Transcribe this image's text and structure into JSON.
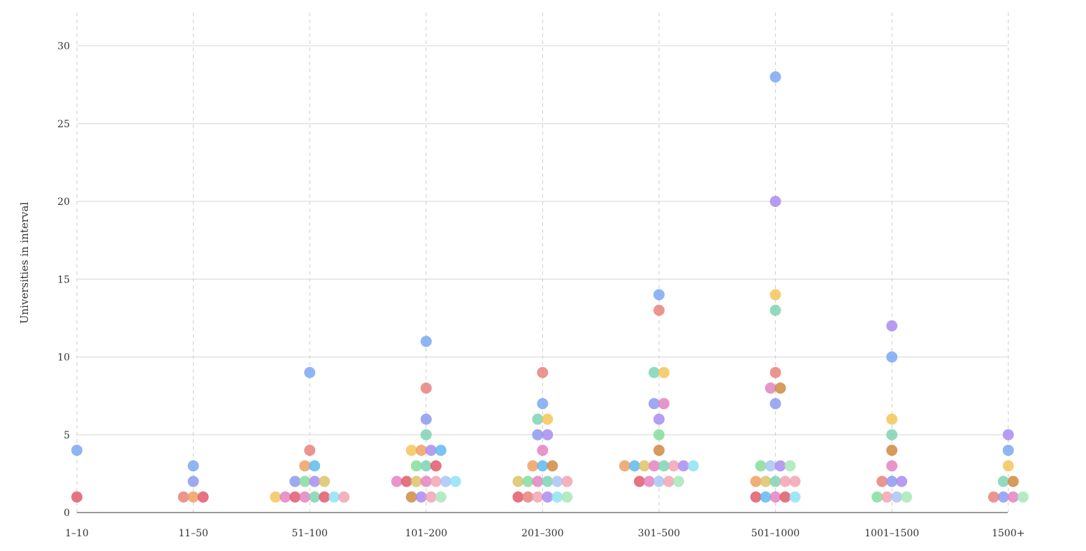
{
  "chart_data": {
    "type": "scatter",
    "title": "",
    "xlabel": "",
    "ylabel": "Universities in interval",
    "ylim": [
      0,
      31
    ],
    "yticks": [
      0,
      5,
      10,
      15,
      20,
      25,
      30
    ],
    "grid": true,
    "categories": [
      "1–10",
      "11–50",
      "51–100",
      "101–200",
      "201–300",
      "301–500",
      "501–1000",
      "1001–1500",
      "1500+"
    ],
    "palette": [
      "#E15A6B",
      "#E8827C",
      "#F0A060",
      "#F3C65A",
      "#DCC36A",
      "#F2A3B3",
      "#E383C2",
      "#A98CF0",
      "#8C9AEF",
      "#7BA8F3",
      "#A9C6F5",
      "#5FB9F0",
      "#8FE3F5",
      "#7FD4B4",
      "#85DD9C",
      "#A8E8B8",
      "#D08A40"
    ],
    "points": [
      {
        "cat": 0,
        "y": 1,
        "c": 0
      },
      {
        "cat": 0,
        "y": 4,
        "c": 9
      },
      {
        "cat": 1,
        "y": 1,
        "c": 1
      },
      {
        "cat": 1,
        "y": 1,
        "c": 2
      },
      {
        "cat": 1,
        "y": 1,
        "c": 0
      },
      {
        "cat": 1,
        "y": 2,
        "c": 8
      },
      {
        "cat": 1,
        "y": 3,
        "c": 9
      },
      {
        "cat": 2,
        "y": 1,
        "c": 3
      },
      {
        "cat": 2,
        "y": 1,
        "c": 6
      },
      {
        "cat": 2,
        "y": 1,
        "c": 0
      },
      {
        "cat": 2,
        "y": 1,
        "c": 6
      },
      {
        "cat": 2,
        "y": 1,
        "c": 13
      },
      {
        "cat": 2,
        "y": 1,
        "c": 0
      },
      {
        "cat": 2,
        "y": 1,
        "c": 12
      },
      {
        "cat": 2,
        "y": 1,
        "c": 5
      },
      {
        "cat": 2,
        "y": 2,
        "c": 8
      },
      {
        "cat": 2,
        "y": 2,
        "c": 14
      },
      {
        "cat": 2,
        "y": 2,
        "c": 7
      },
      {
        "cat": 2,
        "y": 2,
        "c": 4
      },
      {
        "cat": 2,
        "y": 3,
        "c": 2
      },
      {
        "cat": 2,
        "y": 3,
        "c": 11
      },
      {
        "cat": 2,
        "y": 4,
        "c": 1
      },
      {
        "cat": 2,
        "y": 9,
        "c": 9
      },
      {
        "cat": 3,
        "y": 1,
        "c": 16
      },
      {
        "cat": 3,
        "y": 1,
        "c": 7
      },
      {
        "cat": 3,
        "y": 1,
        "c": 5
      },
      {
        "cat": 3,
        "y": 1,
        "c": 15
      },
      {
        "cat": 3,
        "y": 2,
        "c": 6
      },
      {
        "cat": 3,
        "y": 2,
        "c": 0
      },
      {
        "cat": 3,
        "y": 2,
        "c": 4
      },
      {
        "cat": 3,
        "y": 2,
        "c": 6
      },
      {
        "cat": 3,
        "y": 2,
        "c": 5
      },
      {
        "cat": 3,
        "y": 2,
        "c": 10
      },
      {
        "cat": 3,
        "y": 2,
        "c": 12
      },
      {
        "cat": 3,
        "y": 3,
        "c": 14
      },
      {
        "cat": 3,
        "y": 3,
        "c": 13
      },
      {
        "cat": 3,
        "y": 3,
        "c": 0
      },
      {
        "cat": 3,
        "y": 4,
        "c": 3
      },
      {
        "cat": 3,
        "y": 4,
        "c": 2
      },
      {
        "cat": 3,
        "y": 4,
        "c": 7
      },
      {
        "cat": 3,
        "y": 4,
        "c": 11
      },
      {
        "cat": 3,
        "y": 5,
        "c": 13
      },
      {
        "cat": 3,
        "y": 6,
        "c": 8
      },
      {
        "cat": 3,
        "y": 8,
        "c": 1
      },
      {
        "cat": 3,
        "y": 11,
        "c": 9
      },
      {
        "cat": 4,
        "y": 1,
        "c": 0
      },
      {
        "cat": 4,
        "y": 1,
        "c": 1
      },
      {
        "cat": 4,
        "y": 1,
        "c": 5
      },
      {
        "cat": 4,
        "y": 1,
        "c": 7
      },
      {
        "cat": 4,
        "y": 1,
        "c": 12
      },
      {
        "cat": 4,
        "y": 1,
        "c": 15
      },
      {
        "cat": 4,
        "y": 2,
        "c": 4
      },
      {
        "cat": 4,
        "y": 2,
        "c": 14
      },
      {
        "cat": 4,
        "y": 2,
        "c": 6
      },
      {
        "cat": 4,
        "y": 2,
        "c": 13
      },
      {
        "cat": 4,
        "y": 2,
        "c": 10
      },
      {
        "cat": 4,
        "y": 2,
        "c": 5
      },
      {
        "cat": 4,
        "y": 3,
        "c": 2
      },
      {
        "cat": 4,
        "y": 3,
        "c": 11
      },
      {
        "cat": 4,
        "y": 3,
        "c": 16
      },
      {
        "cat": 4,
        "y": 4,
        "c": 6
      },
      {
        "cat": 4,
        "y": 5,
        "c": 8
      },
      {
        "cat": 4,
        "y": 5,
        "c": 7
      },
      {
        "cat": 4,
        "y": 6,
        "c": 13
      },
      {
        "cat": 4,
        "y": 6,
        "c": 3
      },
      {
        "cat": 4,
        "y": 7,
        "c": 9
      },
      {
        "cat": 4,
        "y": 9,
        "c": 1
      },
      {
        "cat": 5,
        "y": 2,
        "c": 0
      },
      {
        "cat": 5,
        "y": 2,
        "c": 6
      },
      {
        "cat": 5,
        "y": 2,
        "c": 10
      },
      {
        "cat": 5,
        "y": 2,
        "c": 5
      },
      {
        "cat": 5,
        "y": 2,
        "c": 15
      },
      {
        "cat": 5,
        "y": 3,
        "c": 2
      },
      {
        "cat": 5,
        "y": 3,
        "c": 11
      },
      {
        "cat": 5,
        "y": 3,
        "c": 4
      },
      {
        "cat": 5,
        "y": 3,
        "c": 6
      },
      {
        "cat": 5,
        "y": 3,
        "c": 13
      },
      {
        "cat": 5,
        "y": 3,
        "c": 5
      },
      {
        "cat": 5,
        "y": 3,
        "c": 7
      },
      {
        "cat": 5,
        "y": 3,
        "c": 12
      },
      {
        "cat": 5,
        "y": 4,
        "c": 16
      },
      {
        "cat": 5,
        "y": 5,
        "c": 14
      },
      {
        "cat": 5,
        "y": 6,
        "c": 7
      },
      {
        "cat": 5,
        "y": 7,
        "c": 8
      },
      {
        "cat": 5,
        "y": 7,
        "c": 6
      },
      {
        "cat": 5,
        "y": 9,
        "c": 13
      },
      {
        "cat": 5,
        "y": 9,
        "c": 3
      },
      {
        "cat": 5,
        "y": 13,
        "c": 1
      },
      {
        "cat": 5,
        "y": 14,
        "c": 9
      },
      {
        "cat": 6,
        "y": 1,
        "c": 0
      },
      {
        "cat": 6,
        "y": 1,
        "c": 11
      },
      {
        "cat": 6,
        "y": 1,
        "c": 6
      },
      {
        "cat": 6,
        "y": 1,
        "c": 0
      },
      {
        "cat": 6,
        "y": 1,
        "c": 12
      },
      {
        "cat": 6,
        "y": 2,
        "c": 2
      },
      {
        "cat": 6,
        "y": 2,
        "c": 4
      },
      {
        "cat": 6,
        "y": 2,
        "c": 13
      },
      {
        "cat": 6,
        "y": 2,
        "c": 5
      },
      {
        "cat": 6,
        "y": 2,
        "c": 5
      },
      {
        "cat": 6,
        "y": 3,
        "c": 14
      },
      {
        "cat": 6,
        "y": 3,
        "c": 10
      },
      {
        "cat": 6,
        "y": 3,
        "c": 7
      },
      {
        "cat": 6,
        "y": 3,
        "c": 15
      },
      {
        "cat": 6,
        "y": 7,
        "c": 8
      },
      {
        "cat": 6,
        "y": 8,
        "c": 6
      },
      {
        "cat": 6,
        "y": 8,
        "c": 16
      },
      {
        "cat": 6,
        "y": 9,
        "c": 1
      },
      {
        "cat": 6,
        "y": 13,
        "c": 13
      },
      {
        "cat": 6,
        "y": 14,
        "c": 3
      },
      {
        "cat": 6,
        "y": 20,
        "c": 7
      },
      {
        "cat": 6,
        "y": 28,
        "c": 9
      },
      {
        "cat": 7,
        "y": 1,
        "c": 14
      },
      {
        "cat": 7,
        "y": 1,
        "c": 5
      },
      {
        "cat": 7,
        "y": 1,
        "c": 10
      },
      {
        "cat": 7,
        "y": 1,
        "c": 15
      },
      {
        "cat": 7,
        "y": 2,
        "c": 1
      },
      {
        "cat": 7,
        "y": 2,
        "c": 8
      },
      {
        "cat": 7,
        "y": 2,
        "c": 7
      },
      {
        "cat": 7,
        "y": 3,
        "c": 6
      },
      {
        "cat": 7,
        "y": 4,
        "c": 16
      },
      {
        "cat": 7,
        "y": 5,
        "c": 13
      },
      {
        "cat": 7,
        "y": 6,
        "c": 3
      },
      {
        "cat": 7,
        "y": 10,
        "c": 9
      },
      {
        "cat": 7,
        "y": 12,
        "c": 7
      },
      {
        "cat": 8,
        "y": 1,
        "c": 1
      },
      {
        "cat": 8,
        "y": 1,
        "c": 8
      },
      {
        "cat": 8,
        "y": 1,
        "c": 6
      },
      {
        "cat": 8,
        "y": 1,
        "c": 15
      },
      {
        "cat": 8,
        "y": 2,
        "c": 13
      },
      {
        "cat": 8,
        "y": 2,
        "c": 16
      },
      {
        "cat": 8,
        "y": 3,
        "c": 3
      },
      {
        "cat": 8,
        "y": 4,
        "c": 9
      },
      {
        "cat": 8,
        "y": 5,
        "c": 7
      }
    ]
  }
}
